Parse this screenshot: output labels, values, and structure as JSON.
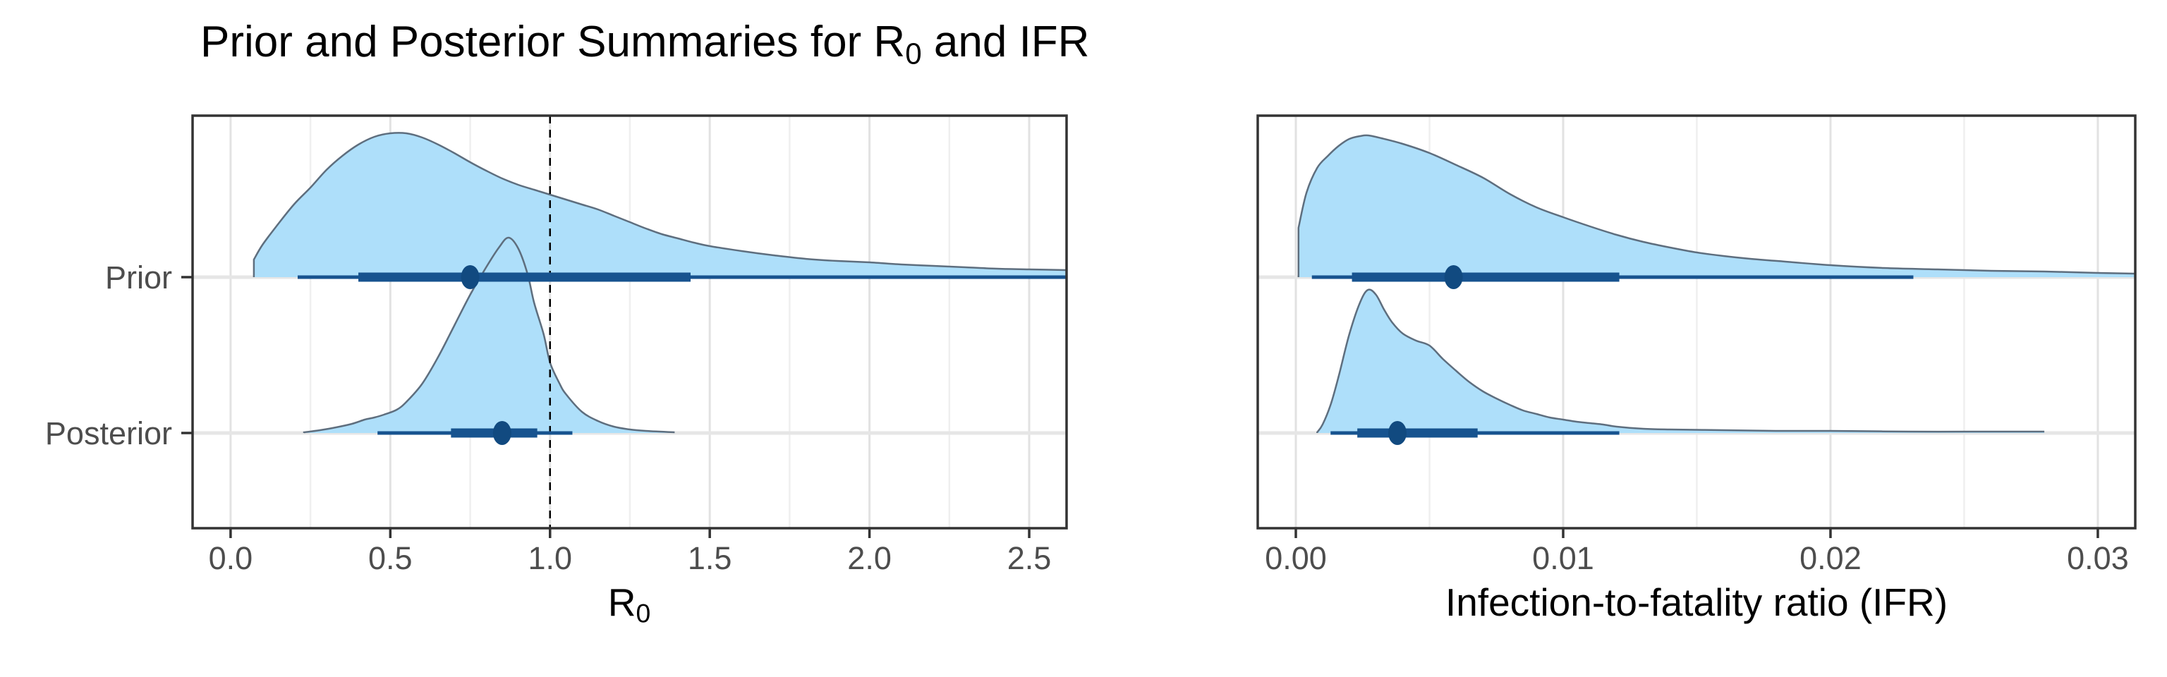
{
  "title": {
    "prefix": "Prior and Posterior Summaries for R",
    "sub": "0",
    "suffix": " and IFR"
  },
  "colors": {
    "density_fill": "#AEDFFA",
    "density_outline": "#5E6E7E",
    "interval_color": "#17538F",
    "point_color": "#114A80",
    "reference_line_color": "#000000",
    "grid_major": "#E2E2E2",
    "grid_minor": "#EFEFEF",
    "row_line": "#E6E6E6",
    "panel_border": "#333333",
    "tick_mark": "#333333",
    "axis_text": "#4D4D4D",
    "title_color": "#000000"
  },
  "chart_data": [
    {
      "type": "area",
      "id": "r0",
      "xlabel": {
        "prefix": "R",
        "sub": "0",
        "suffix": ""
      },
      "xlim": [
        -0.119,
        2.617
      ],
      "x_ticks": [
        0.0,
        0.5,
        1.0,
        1.5,
        2.0,
        2.5
      ],
      "x_tick_labels": [
        "0.0",
        "0.5",
        "1.0",
        "1.5",
        "2.0",
        "2.5"
      ],
      "minor_ticks": [
        0.25,
        0.75,
        1.25,
        1.75,
        2.25
      ],
      "reference_line": 1.0,
      "grid": true,
      "legend": "none",
      "rows": [
        {
          "label": "Prior",
          "interval": {
            "point": 0.75,
            "thick": [
              0.4,
              1.44
            ],
            "thin": [
              0.21,
              2.617
            ],
            "thin_clipped_right": true
          },
          "density_points": [
            [
              0.073,
              25
            ],
            [
              0.1,
              46
            ],
            [
              0.15,
              76
            ],
            [
              0.2,
              104
            ],
            [
              0.25,
              127
            ],
            [
              0.3,
              152
            ],
            [
              0.35,
              172
            ],
            [
              0.4,
              188
            ],
            [
              0.45,
              199
            ],
            [
              0.5,
              204
            ],
            [
              0.55,
              204
            ],
            [
              0.6,
              198
            ],
            [
              0.65,
              188
            ],
            [
              0.7,
              176
            ],
            [
              0.75,
              163
            ],
            [
              0.8,
              151
            ],
            [
              0.85,
              140
            ],
            [
              0.9,
              131
            ],
            [
              0.95,
              124
            ],
            [
              1.0,
              117
            ],
            [
              1.05,
              110
            ],
            [
              1.1,
              103
            ],
            [
              1.15,
              96
            ],
            [
              1.2,
              87
            ],
            [
              1.25,
              78
            ],
            [
              1.3,
              69
            ],
            [
              1.35,
              61
            ],
            [
              1.4,
              55
            ],
            [
              1.45,
              49
            ],
            [
              1.5,
              44
            ],
            [
              1.6,
              37
            ],
            [
              1.7,
              31
            ],
            [
              1.8,
              26
            ],
            [
              1.9,
              23
            ],
            [
              2.0,
              21
            ],
            [
              2.1,
              18
            ],
            [
              2.2,
              16
            ],
            [
              2.3,
              14
            ],
            [
              2.4,
              12
            ],
            [
              2.5,
              11
            ],
            [
              2.617,
              10
            ]
          ]
        },
        {
          "label": "Posterior",
          "interval": {
            "point": 0.85,
            "thick": [
              0.69,
              0.96
            ],
            "thin": [
              0.46,
              1.07
            ],
            "thin_clipped_right": false
          },
          "density_points": [
            [
              0.23,
              1
            ],
            [
              0.28,
              4
            ],
            [
              0.33,
              8
            ],
            [
              0.38,
              13
            ],
            [
              0.42,
              19
            ],
            [
              0.45,
              22
            ],
            [
              0.48,
              26
            ],
            [
              0.52,
              33
            ],
            [
              0.55,
              44
            ],
            [
              0.6,
              70
            ],
            [
              0.65,
              108
            ],
            [
              0.7,
              152
            ],
            [
              0.75,
              196
            ],
            [
              0.8,
              235
            ],
            [
              0.84,
              263
            ],
            [
              0.87,
              277
            ],
            [
              0.9,
              262
            ],
            [
              0.93,
              225
            ],
            [
              0.95,
              185
            ],
            [
              0.98,
              140
            ],
            [
              1.0,
              100
            ],
            [
              1.03,
              70
            ],
            [
              1.05,
              55
            ],
            [
              1.1,
              30
            ],
            [
              1.15,
              17
            ],
            [
              1.2,
              9
            ],
            [
              1.25,
              5
            ],
            [
              1.3,
              3
            ],
            [
              1.39,
              1
            ]
          ]
        }
      ]
    },
    {
      "type": "area",
      "id": "ifr",
      "xlabel": {
        "prefix": "Infection-to-fatality ratio (IFR)",
        "sub": "",
        "suffix": ""
      },
      "xlim": [
        -0.001425,
        0.0314
      ],
      "x_ticks": [
        0.0,
        0.01,
        0.02,
        0.03
      ],
      "x_tick_labels": [
        "0.00",
        "0.01",
        "0.02",
        "0.03"
      ],
      "minor_ticks": [
        0.005,
        0.015,
        0.025
      ],
      "reference_line": null,
      "grid": true,
      "legend": "none",
      "rows": [
        {
          "label": "Prior",
          "interval": {
            "point": 0.0059,
            "thick": [
              0.0021,
              0.0121
            ],
            "thin": [
              0.0006,
              0.0231
            ],
            "thin_clipped_right": false
          },
          "density_points": [
            [
              0.0001,
              70
            ],
            [
              0.0004,
              120
            ],
            [
              0.0008,
              155
            ],
            [
              0.0012,
              172
            ],
            [
              0.0016,
              186
            ],
            [
              0.002,
              196
            ],
            [
              0.0024,
              200
            ],
            [
              0.0027,
              201
            ],
            [
              0.0032,
              197
            ],
            [
              0.004,
              189
            ],
            [
              0.005,
              176
            ],
            [
              0.006,
              159
            ],
            [
              0.007,
              141
            ],
            [
              0.008,
              118
            ],
            [
              0.009,
              99
            ],
            [
              0.01,
              85
            ],
            [
              0.011,
              72
            ],
            [
              0.012,
              60
            ],
            [
              0.013,
              50
            ],
            [
              0.014,
              42
            ],
            [
              0.015,
              35
            ],
            [
              0.016,
              30
            ],
            [
              0.017,
              26
            ],
            [
              0.018,
              23
            ],
            [
              0.02,
              17
            ],
            [
              0.022,
              13
            ],
            [
              0.024,
              11
            ],
            [
              0.026,
              9
            ],
            [
              0.028,
              8
            ],
            [
              0.03,
              6
            ],
            [
              0.0314,
              5
            ]
          ]
        },
        {
          "label": "Posterior",
          "interval": {
            "point": 0.0038,
            "thick": [
              0.0023,
              0.0068
            ],
            "thin": [
              0.0013,
              0.0121
            ],
            "thin_clipped_right": false
          },
          "density_points": [
            [
              0.0008,
              1
            ],
            [
              0.001,
              12
            ],
            [
              0.0013,
              40
            ],
            [
              0.0016,
              80
            ],
            [
              0.002,
              140
            ],
            [
              0.0024,
              185
            ],
            [
              0.0027,
              203
            ],
            [
              0.003,
              196
            ],
            [
              0.0033,
              175
            ],
            [
              0.0036,
              157
            ],
            [
              0.004,
              141
            ],
            [
              0.0045,
              131
            ],
            [
              0.005,
              124
            ],
            [
              0.0055,
              105
            ],
            [
              0.006,
              88
            ],
            [
              0.0065,
              72
            ],
            [
              0.007,
              59
            ],
            [
              0.0075,
              49
            ],
            [
              0.008,
              40
            ],
            [
              0.0085,
              32
            ],
            [
              0.009,
              27
            ],
            [
              0.0095,
              22
            ],
            [
              0.01,
              19
            ],
            [
              0.0105,
              16
            ],
            [
              0.011,
              14
            ],
            [
              0.0115,
              12
            ],
            [
              0.012,
              9
            ],
            [
              0.013,
              6
            ],
            [
              0.014,
              5
            ],
            [
              0.016,
              4
            ],
            [
              0.018,
              3
            ],
            [
              0.02,
              3
            ],
            [
              0.023,
              2
            ],
            [
              0.026,
              2
            ],
            [
              0.028,
              2
            ]
          ]
        }
      ]
    }
  ]
}
